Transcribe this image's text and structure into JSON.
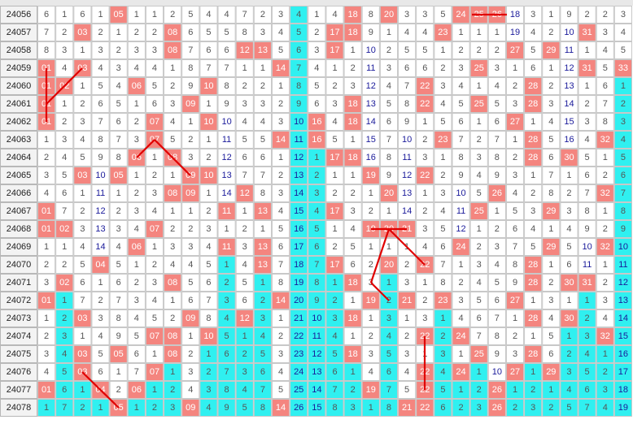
{
  "table": {
    "rows": [
      {
        "issue": "24056",
        "cells": [
          "6",
          "1",
          "6",
          "1",
          "05",
          "1",
          "1",
          "2",
          "5",
          "4",
          "4",
          "7",
          "2",
          "3",
          "4",
          "1",
          "4",
          "18",
          "8",
          "20",
          "3",
          "3",
          "5",
          "24",
          "25",
          "26",
          "18",
          "3",
          "1",
          "9",
          "2",
          "2",
          "3"
        ]
      },
      {
        "issue": "24057",
        "cells": [
          "7",
          "2",
          "03",
          "2",
          "1",
          "2",
          "2",
          "08",
          "6",
          "5",
          "5",
          "8",
          "3",
          "4",
          "5",
          "2",
          "17",
          "18",
          "9",
          "1",
          "4",
          "4",
          "23",
          "1",
          "1",
          "1",
          "19",
          "4",
          "2",
          "10",
          "31",
          "3",
          "4"
        ]
      },
      {
        "issue": "24058",
        "cells": [
          "8",
          "3",
          "1",
          "3",
          "2",
          "3",
          "3",
          "08",
          "7",
          "6",
          "6",
          "12",
          "13",
          "5",
          "6",
          "3",
          "17",
          "1",
          "10",
          "2",
          "5",
          "5",
          "1",
          "2",
          "2",
          "2",
          "27",
          "5",
          "29",
          "11",
          "1",
          "4",
          "5"
        ]
      },
      {
        "issue": "24059",
        "cells": [
          "01",
          "4",
          "03",
          "4",
          "3",
          "4",
          "4",
          "1",
          "8",
          "7",
          "7",
          "1",
          "1",
          "14",
          "7",
          "4",
          "1",
          "2",
          "11",
          "3",
          "6",
          "6",
          "2",
          "3",
          "25",
          "3",
          "1",
          "6",
          "1",
          "12",
          "31",
          "5",
          "33"
        ]
      },
      {
        "issue": "24060",
        "cells": [
          "01",
          "02",
          "1",
          "5",
          "4",
          "06",
          "5",
          "2",
          "9",
          "10",
          "8",
          "2",
          "2",
          "1",
          "8",
          "5",
          "2",
          "3",
          "12",
          "4",
          "7",
          "22",
          "3",
          "4",
          "1",
          "4",
          "2",
          "28",
          "2",
          "13",
          "1",
          "6",
          "1"
        ]
      },
      {
        "issue": "24061",
        "cells": [
          "01",
          "1",
          "2",
          "6",
          "5",
          "1",
          "6",
          "3",
          "09",
          "1",
          "9",
          "3",
          "3",
          "2",
          "9",
          "6",
          "3",
          "18",
          "13",
          "5",
          "8",
          "22",
          "4",
          "5",
          "25",
          "5",
          "3",
          "28",
          "3",
          "14",
          "2",
          "7",
          "2"
        ]
      },
      {
        "issue": "24062",
        "cells": [
          "01",
          "2",
          "3",
          "7",
          "6",
          "2",
          "07",
          "4",
          "1",
          "10",
          "10",
          "4",
          "4",
          "3",
          "10",
          "16",
          "4",
          "18",
          "14",
          "6",
          "9",
          "1",
          "5",
          "6",
          "1",
          "6",
          "27",
          "1",
          "4",
          "15",
          "3",
          "8",
          "3"
        ]
      },
      {
        "issue": "24063",
        "cells": [
          "1",
          "3",
          "4",
          "8",
          "7",
          "3",
          "07",
          "5",
          "2",
          "1",
          "11",
          "5",
          "5",
          "14",
          "11",
          "16",
          "5",
          "1",
          "15",
          "7",
          "10",
          "2",
          "23",
          "7",
          "2",
          "7",
          "1",
          "28",
          "5",
          "16",
          "4",
          "32",
          "4"
        ]
      },
      {
        "issue": "24064",
        "cells": [
          "2",
          "4",
          "5",
          "9",
          "8",
          "06",
          "1",
          "08",
          "3",
          "2",
          "12",
          "6",
          "6",
          "1",
          "12",
          "1",
          "17",
          "18",
          "16",
          "8",
          "11",
          "3",
          "1",
          "8",
          "3",
          "8",
          "2",
          "28",
          "6",
          "30",
          "5",
          "1",
          "5"
        ]
      },
      {
        "issue": "24065",
        "cells": [
          "3",
          "5",
          "03",
          "10",
          "05",
          "1",
          "2",
          "1",
          "09",
          "10",
          "13",
          "7",
          "7",
          "2",
          "13",
          "2",
          "1",
          "1",
          "19",
          "9",
          "12",
          "22",
          "2",
          "9",
          "4",
          "9",
          "3",
          "1",
          "7",
          "1",
          "6",
          "2",
          "6"
        ]
      },
      {
        "issue": "24066",
        "cells": [
          "4",
          "6",
          "1",
          "11",
          "1",
          "2",
          "3",
          "08",
          "09",
          "1",
          "14",
          "12",
          "8",
          "3",
          "14",
          "3",
          "2",
          "2",
          "1",
          "20",
          "13",
          "1",
          "3",
          "10",
          "5",
          "26",
          "4",
          "2",
          "8",
          "2",
          "7",
          "32",
          "7"
        ]
      },
      {
        "issue": "24067",
        "cells": [
          "01",
          "7",
          "2",
          "12",
          "2",
          "3",
          "4",
          "1",
          "1",
          "2",
          "11",
          "1",
          "13",
          "4",
          "15",
          "4",
          "17",
          "3",
          "2",
          "1",
          "14",
          "2",
          "4",
          "11",
          "25",
          "1",
          "5",
          "3",
          "29",
          "3",
          "8",
          "1",
          "8"
        ]
      },
      {
        "issue": "24068",
        "cells": [
          "01",
          "02",
          "3",
          "13",
          "3",
          "4",
          "07",
          "2",
          "2",
          "3",
          "1",
          "2",
          "1",
          "5",
          "16",
          "5",
          "1",
          "4",
          "19",
          "20",
          "21",
          "3",
          "5",
          "12",
          "1",
          "2",
          "6",
          "4",
          "1",
          "4",
          "9",
          "2",
          "9"
        ]
      },
      {
        "issue": "24069",
        "cells": [
          "1",
          "1",
          "4",
          "14",
          "4",
          "06",
          "1",
          "3",
          "3",
          "4",
          "11",
          "3",
          "13",
          "6",
          "17",
          "6",
          "2",
          "5",
          "1",
          "1",
          "1",
          "4",
          "6",
          "24",
          "2",
          "3",
          "7",
          "5",
          "29",
          "5",
          "10",
          "32",
          "10"
        ]
      },
      {
        "issue": "24070",
        "cells": [
          "2",
          "2",
          "5",
          "04",
          "5",
          "1",
          "2",
          "4",
          "4",
          "5",
          "1",
          "4",
          "13",
          "7",
          "18",
          "7",
          "17",
          "6",
          "2",
          "20",
          "2",
          "22",
          "7",
          "1",
          "3",
          "4",
          "8",
          "28",
          "1",
          "6",
          "11",
          "1",
          "11"
        ]
      },
      {
        "issue": "24071",
        "cells": [
          "3",
          "02",
          "6",
          "1",
          "6",
          "2",
          "3",
          "08",
          "5",
          "6",
          "2",
          "5",
          "1",
          "8",
          "19",
          "8",
          "1",
          "18",
          "3",
          "1",
          "3",
          "1",
          "8",
          "2",
          "4",
          "5",
          "9",
          "28",
          "2",
          "30",
          "31",
          "2",
          "12"
        ]
      },
      {
        "issue": "24072",
        "cells": [
          "01",
          "1",
          "7",
          "2",
          "7",
          "3",
          "4",
          "1",
          "6",
          "7",
          "3",
          "6",
          "2",
          "14",
          "20",
          "9",
          "2",
          "1",
          "19",
          "2",
          "21",
          "2",
          "23",
          "3",
          "5",
          "6",
          "27",
          "1",
          "3",
          "1",
          "1",
          "3",
          "13"
        ]
      },
      {
        "issue": "24073",
        "cells": [
          "1",
          "2",
          "03",
          "3",
          "8",
          "4",
          "5",
          "2",
          "09",
          "8",
          "4",
          "12",
          "3",
          "1",
          "21",
          "10",
          "3",
          "18",
          "1",
          "3",
          "1",
          "3",
          "1",
          "4",
          "6",
          "7",
          "1",
          "28",
          "4",
          "30",
          "2",
          "4",
          "14"
        ]
      },
      {
        "issue": "24074",
        "cells": [
          "2",
          "3",
          "1",
          "4",
          "9",
          "5",
          "07",
          "08",
          "1",
          "10",
          "5",
          "1",
          "4",
          "2",
          "22",
          "11",
          "4",
          "1",
          "2",
          "4",
          "2",
          "22",
          "2",
          "24",
          "7",
          "8",
          "2",
          "1",
          "5",
          "1",
          "3",
          "32",
          "15"
        ]
      },
      {
        "issue": "24075",
        "cells": [
          "3",
          "4",
          "03",
          "5",
          "05",
          "6",
          "1",
          "08",
          "2",
          "1",
          "6",
          "2",
          "5",
          "3",
          "23",
          "12",
          "5",
          "18",
          "3",
          "5",
          "3",
          "1",
          "3",
          "1",
          "25",
          "9",
          "3",
          "28",
          "6",
          "2",
          "4",
          "1",
          "16"
        ]
      },
      {
        "issue": "24076",
        "cells": [
          "4",
          "5",
          "03",
          "6",
          "1",
          "7",
          "07",
          "1",
          "3",
          "2",
          "7",
          "3",
          "6",
          "4",
          "24",
          "13",
          "6",
          "1",
          "4",
          "6",
          "4",
          "22",
          "4",
          "24",
          "1",
          "10",
          "27",
          "1",
          "29",
          "3",
          "5",
          "2",
          "17"
        ]
      },
      {
        "issue": "24077",
        "cells": [
          "01",
          "6",
          "1",
          "04",
          "2",
          "06",
          "1",
          "2",
          "4",
          "3",
          "8",
          "4",
          "7",
          "5",
          "25",
          "14",
          "7",
          "2",
          "19",
          "7",
          "5",
          "22",
          "5",
          "1",
          "2",
          "26",
          "1",
          "2",
          "1",
          "4",
          "6",
          "3",
          "18"
        ]
      },
      {
        "issue": "24078",
        "cells": [
          "1",
          "7",
          "2",
          "1",
          "05",
          "1",
          "2",
          "3",
          "09",
          "4",
          "9",
          "5",
          "8",
          "14",
          "26",
          "15",
          "8",
          "3",
          "1",
          "8",
          "21",
          "22",
          "6",
          "2",
          "3",
          "26",
          "2",
          "3",
          "2",
          "5",
          "7",
          "4",
          "19"
        ]
      }
    ]
  }
}
